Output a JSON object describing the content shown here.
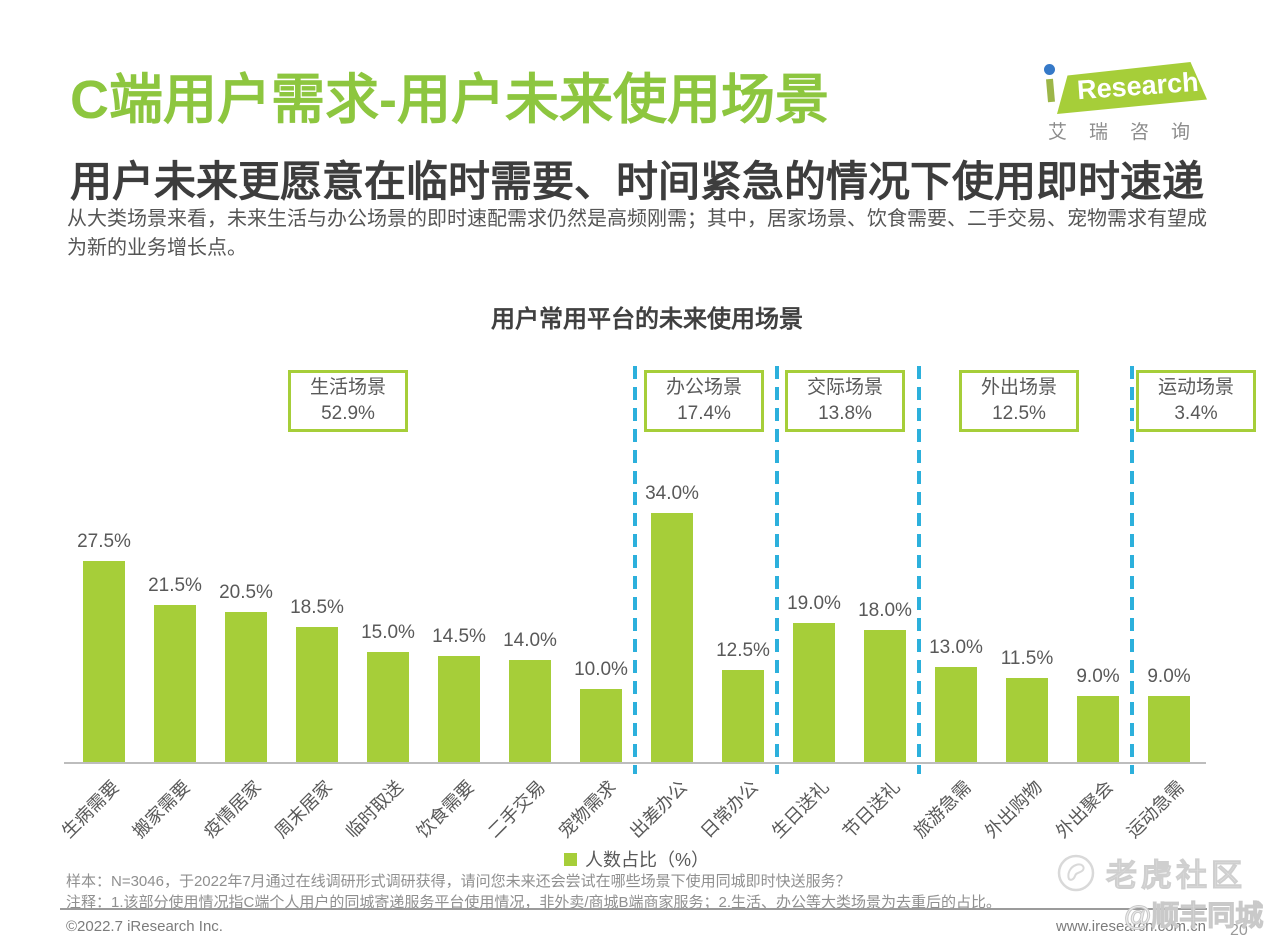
{
  "page": {
    "title": "C端用户需求-用户未来使用场景",
    "subtitle": "用户未来更愿意在临时需要、时间紧急的情况下使用即时速递",
    "body": "从大类场景来看，未来生活与办公场景的即时速配需求仍然是高频刚需；其中，居家场景、饮食需要、二手交易、宠物需求有望成为新的业务增长点。",
    "page_number": "20"
  },
  "logo": {
    "brand": "Research",
    "caption": "艾瑞咨询"
  },
  "chart_data": {
    "type": "bar",
    "title": "用户常用平台的未来使用场景",
    "unit": "%",
    "ylim": [
      0,
      40
    ],
    "grid": false,
    "legend_position": "bottom",
    "legend": [
      {
        "label": "人数占比（%）",
        "color": "#a6ce39"
      }
    ],
    "categories": [
      "生病需要",
      "搬家需要",
      "疫情居家",
      "周末居家",
      "临时取送",
      "饮食需要",
      "二手交易",
      "宠物需求",
      "出差办公",
      "日常办公",
      "生日送礼",
      "节日送礼",
      "旅游急需",
      "外出购物",
      "外出聚会",
      "运动急需"
    ],
    "values": [
      27.5,
      21.5,
      20.5,
      18.5,
      15.0,
      14.5,
      14.0,
      10.0,
      34.0,
      12.5,
      19.0,
      18.0,
      13.0,
      11.5,
      9.0,
      9.0
    ],
    "groups": [
      {
        "label": "生活场景",
        "share": "52.9%",
        "bars": 8
      },
      {
        "label": "办公场景",
        "share": "17.4%",
        "bars": 2
      },
      {
        "label": "交际场景",
        "share": "13.8%",
        "bars": 2
      },
      {
        "label": "外出场景",
        "share": "12.5%",
        "bars": 3
      },
      {
        "label": "运动场景",
        "share": "3.4%",
        "bars": 1
      }
    ]
  },
  "footnotes": {
    "sample": "样本：N=3046，于2022年7月通过在线调研形式调研获得，请问您未来还会尝试在哪些场景下使用同城即时快送服务？",
    "note": "注释：1.该部分使用情况指C端个人用户的同城寄递服务平台使用情况，非外卖/商城B端商家服务；2.生活、办公等大类场景为去重后的占比。"
  },
  "footer": {
    "copyright": "©2022.7 iResearch Inc.",
    "website": "www.iresearch.com.cn"
  },
  "watermarks": {
    "community": "老虎社区",
    "brand": "@顺丰同城"
  },
  "colors": {
    "title_green": "#8dc63f",
    "bar_green": "#a6ce39",
    "group_box_border": "#a6ce39",
    "separator_blue": "#2cb0dc",
    "text_dark": "#3d3d3d",
    "text_gray": "#595959",
    "note_gray": "#8f8f8f"
  }
}
